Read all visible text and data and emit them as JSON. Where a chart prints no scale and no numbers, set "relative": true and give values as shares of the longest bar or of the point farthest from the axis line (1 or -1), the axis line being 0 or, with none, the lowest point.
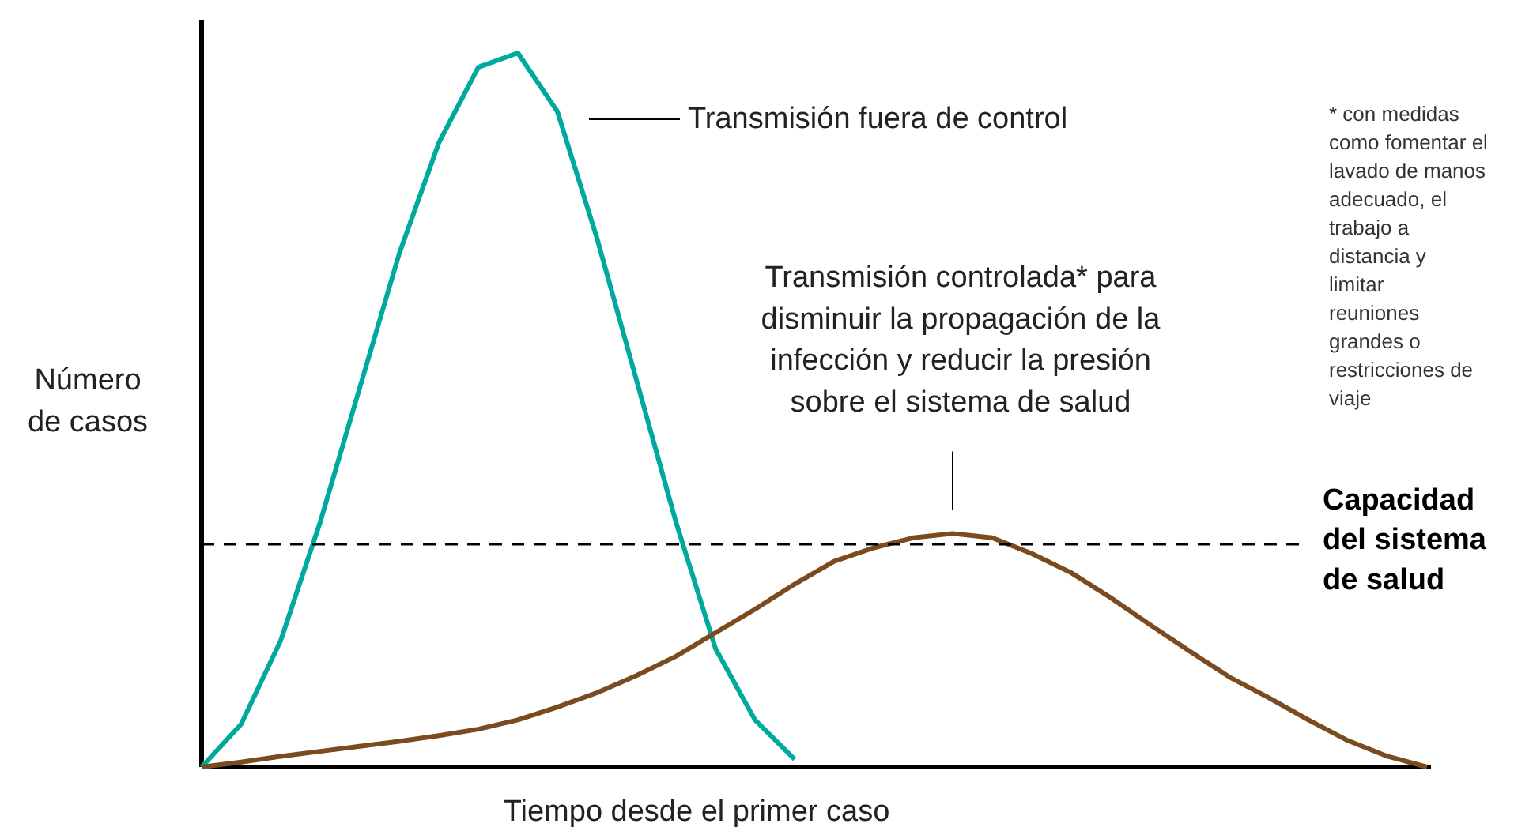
{
  "chart_data": {
    "type": "line",
    "relative": true,
    "xlabel": "Tiempo desde el primer caso",
    "ylabel": "Número de casos",
    "grid": false,
    "categories": [
      null,
      null,
      null,
      null,
      null,
      null,
      null,
      null,
      null,
      null,
      null,
      null,
      null,
      null,
      null,
      null,
      null,
      null,
      null,
      null,
      null,
      null,
      null,
      null,
      null,
      null,
      null,
      null,
      null,
      null,
      null,
      null
    ],
    "series": [
      {
        "color": "#00a99d",
        "values": [
          0,
          0.06,
          0.177,
          0.343,
          0.531,
          0.719,
          0.874,
          0.98,
          1,
          0.918,
          0.741,
          0.542,
          0.343,
          0.166,
          0.066,
          0.011,
          null,
          null,
          null,
          null,
          null,
          null,
          null,
          null,
          null,
          null,
          null,
          null,
          null,
          null,
          null,
          null
        ]
      },
      {
        "color": "#7b4a1e",
        "values": [
          0,
          0.007,
          0.015,
          0.022,
          0.029,
          0.036,
          0.044,
          0.053,
          0.066,
          0.084,
          0.104,
          0.128,
          0.155,
          0.188,
          0.221,
          0.256,
          0.288,
          0.307,
          0.321,
          0.327,
          0.321,
          0.299,
          0.272,
          0.237,
          0.199,
          0.162,
          0.126,
          0.097,
          0.066,
          0.037,
          0.015,
          0
        ]
      }
    ],
    "ref_lines": [
      {
        "axis": "y",
        "value": 0.312,
        "label": "Capacidad del sistema de salud",
        "color": "#000000",
        "line_style": "dashed"
      }
    ],
    "annotations": [
      "Transmisión fuera de control",
      "Transmisión controlada* para disminuir la propagación de la infección y reducir la presión sobre el sistema de salud",
      "* con medidas como fomentar el lavado de manos adecuado, el trabajo a distancia y limitar reuniones grandes o restricciones de viaje"
    ]
  }
}
